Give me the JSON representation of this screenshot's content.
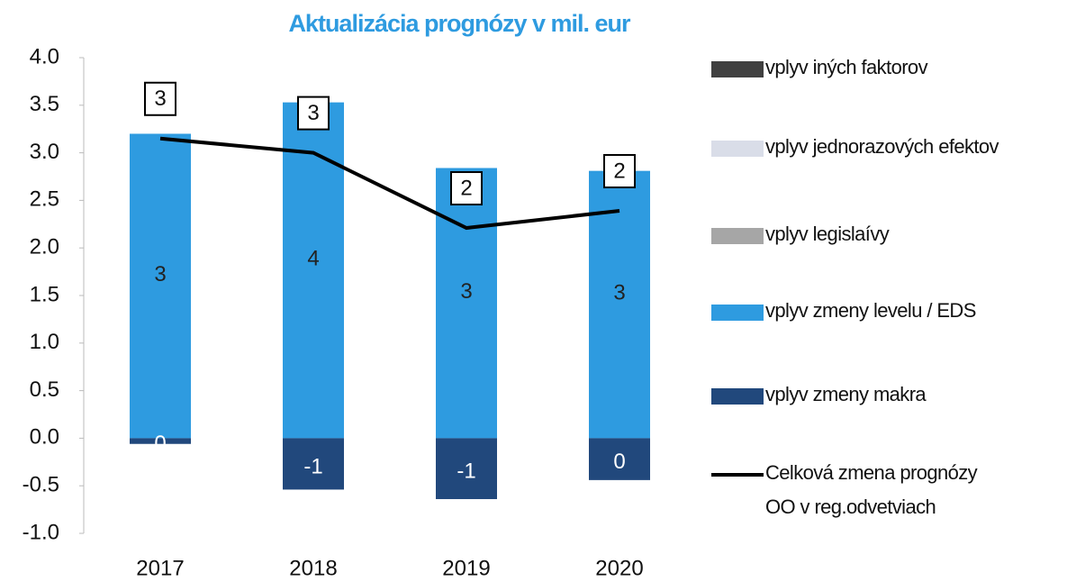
{
  "chart_data": {
    "type": "bar",
    "title": "Aktualizácia prognózy v mil. eur",
    "categories": [
      "2017",
      "2018",
      "2019",
      "2020"
    ],
    "series": [
      {
        "name": "vplyv iných faktorov",
        "color": "#404040",
        "values": [
          0,
          0,
          0,
          0
        ]
      },
      {
        "name": "vplyv jednorazových efektov",
        "color": "#d9dde8",
        "values": [
          0,
          0,
          0,
          0
        ]
      },
      {
        "name": "vplyv legislaívy",
        "color": "#a6a6a6",
        "values": [
          0,
          0,
          0,
          0
        ]
      },
      {
        "name": "vplyv zmeny levelu / EDS",
        "color": "#2e9be0",
        "values": [
          3.2,
          3.53,
          2.84,
          2.81
        ],
        "value_labels": [
          "3",
          "4",
          "3",
          "3"
        ]
      },
      {
        "name": "vplyv zmeny makra",
        "color": "#21487c",
        "values": [
          -0.06,
          -0.54,
          -0.64,
          -0.44
        ],
        "value_labels": [
          "0",
          "-1",
          "-1",
          "0"
        ]
      },
      {
        "name": "Celková zmena prognózy OO v reg.odvetviach",
        "type": "line",
        "color": "#000000",
        "values": [
          3.15,
          3.0,
          2.21,
          2.39
        ],
        "value_labels": [
          "3",
          "3",
          "2",
          "2"
        ]
      }
    ],
    "ylim": [
      -1,
      4
    ],
    "yticks": [
      {
        "value": -1,
        "label": "-1.0"
      },
      {
        "value": -0.5,
        "label": "-0.5"
      },
      {
        "value": 0,
        "label": "0.0"
      },
      {
        "value": 0.5,
        "label": "0.5"
      },
      {
        "value": 1,
        "label": "1.0"
      },
      {
        "value": 1.5,
        "label": "1.5"
      },
      {
        "value": 2,
        "label": "2.0"
      },
      {
        "value": 2.5,
        "label": "2.5"
      },
      {
        "value": 3,
        "label": "3.0"
      },
      {
        "value": 3.5,
        "label": "3.5"
      },
      {
        "value": 4,
        "label": "4.0"
      }
    ]
  }
}
